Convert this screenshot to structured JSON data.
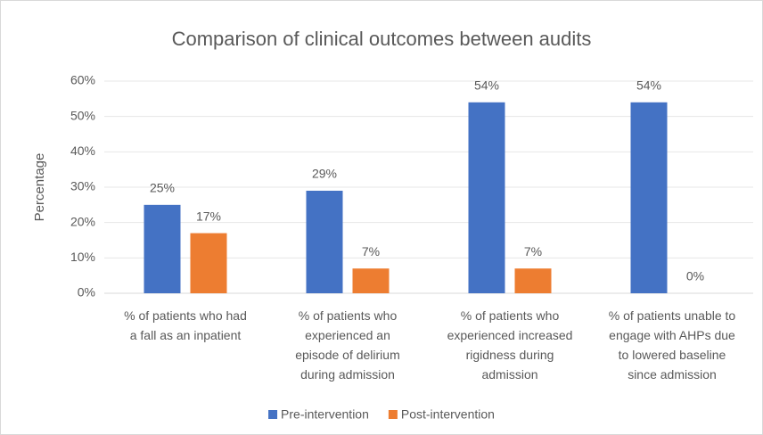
{
  "chart_data": {
    "type": "bar",
    "title": "Comparison of clinical outcomes between audits",
    "y_label": "Percentage",
    "categories": [
      "% of patients who had\na fall as an inpatient",
      "% of patients who\nexperienced an\nepisode of delirium\nduring admission",
      "% of patients who\nexperienced increased\nrigidness during\nadmission",
      "% of patients unable to\nengage with AHPs due\nto lowered baseline\nsince admission"
    ],
    "series": [
      {
        "name": "Pre-intervention",
        "color": "#4472c4",
        "values": [
          25,
          29,
          54,
          54
        ],
        "value_labels": [
          "25%",
          "29%",
          "54%",
          "54%"
        ]
      },
      {
        "name": "Post-intervention",
        "color": "#ed7d31",
        "values": [
          17,
          7,
          7,
          0
        ],
        "value_labels": [
          "17%",
          "7%",
          "7%",
          "0%"
        ]
      }
    ],
    "ylim": [
      0,
      60
    ],
    "yticks": [
      {
        "value": 0,
        "label": "0%"
      },
      {
        "value": 10,
        "label": "10%"
      },
      {
        "value": 20,
        "label": "20%"
      },
      {
        "value": 30,
        "label": "30%"
      },
      {
        "value": 40,
        "label": "40%"
      },
      {
        "value": 50,
        "label": "50%"
      },
      {
        "value": 60,
        "label": "60%"
      }
    ],
    "grid": true,
    "legend": "bottom"
  }
}
